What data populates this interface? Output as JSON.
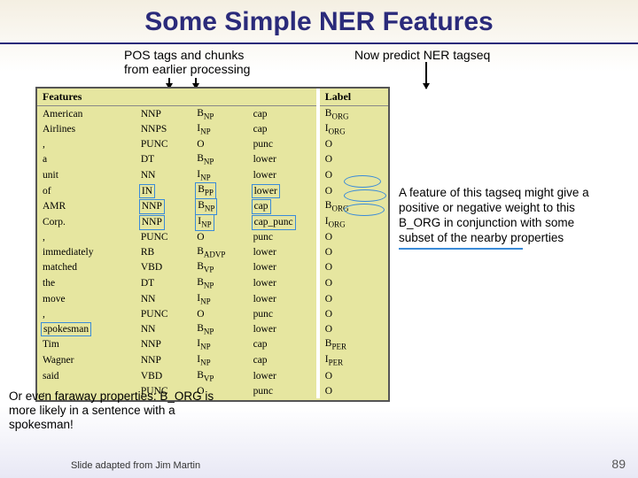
{
  "title": "Some Simple NER Features",
  "annotations": {
    "pos_chunks_l1": "POS tags and chunks",
    "pos_chunks_l2": "from earlier processing",
    "predict": "Now predict NER tagseq"
  },
  "table": {
    "headers": [
      "Features",
      "",
      "",
      "",
      "Label"
    ],
    "rows": [
      [
        "American",
        "NNP",
        "B_NP",
        "cap",
        "B_ORG"
      ],
      [
        "Airlines",
        "NNPS",
        "I_NP",
        "cap",
        "I_ORG"
      ],
      [
        ",",
        "PUNC",
        "O",
        "punc",
        "O"
      ],
      [
        "a",
        "DT",
        "B_NP",
        "lower",
        "O"
      ],
      [
        "unit",
        "NN",
        "I_NP",
        "lower",
        "O"
      ],
      [
        "of",
        "IN",
        "B_PP",
        "lower",
        "O"
      ],
      [
        "AMR",
        "NNP",
        "B_NP",
        "cap",
        "B_ORG"
      ],
      [
        "Corp.",
        "NNP",
        "I_NP",
        "cap_punc",
        "I_ORG"
      ],
      [
        ",",
        "PUNC",
        "O",
        "punc",
        "O"
      ],
      [
        "immediately",
        "RB",
        "B_ADVP",
        "lower",
        "O"
      ],
      [
        "matched",
        "VBD",
        "B_VP",
        "lower",
        "O"
      ],
      [
        "the",
        "DT",
        "B_NP",
        "lower",
        "O"
      ],
      [
        "move",
        "NN",
        "I_NP",
        "lower",
        "O"
      ],
      [
        ",",
        "PUNC",
        "O",
        "punc",
        "O"
      ],
      [
        "spokesman",
        "NN",
        "B_NP",
        "lower",
        "O"
      ],
      [
        "Tim",
        "NNP",
        "I_NP",
        "cap",
        "B_PER"
      ],
      [
        "Wagner",
        "NNP",
        "I_NP",
        "cap",
        "I_PER"
      ],
      [
        "said",
        "VBD",
        "B_VP",
        "lower",
        "O"
      ],
      [
        ".",
        "PUNC",
        "O",
        "punc",
        "O"
      ]
    ],
    "boxed_cells": [
      [
        5,
        1
      ],
      [
        5,
        2
      ],
      [
        5,
        3
      ],
      [
        6,
        1
      ],
      [
        6,
        2
      ],
      [
        6,
        3
      ],
      [
        7,
        1
      ],
      [
        7,
        2
      ],
      [
        7,
        3
      ],
      [
        14,
        0
      ]
    ],
    "circled_labels": [
      5,
      6,
      7
    ]
  },
  "callout_right": "A feature of this tagseq might give a positive or negative weight to this B_ORG in conjunction with some subset of the nearby properties",
  "callout_bottom": "Or even faraway properties: B_ORG is more likely in a sentence with a spokesman!",
  "footer_left": "Slide adapted from Jim Martin",
  "page_number": "89",
  "colors": {
    "title": "#2a2a7a",
    "table_bg": "#e6e6a0",
    "box_blue": "#3a8bd8"
  }
}
